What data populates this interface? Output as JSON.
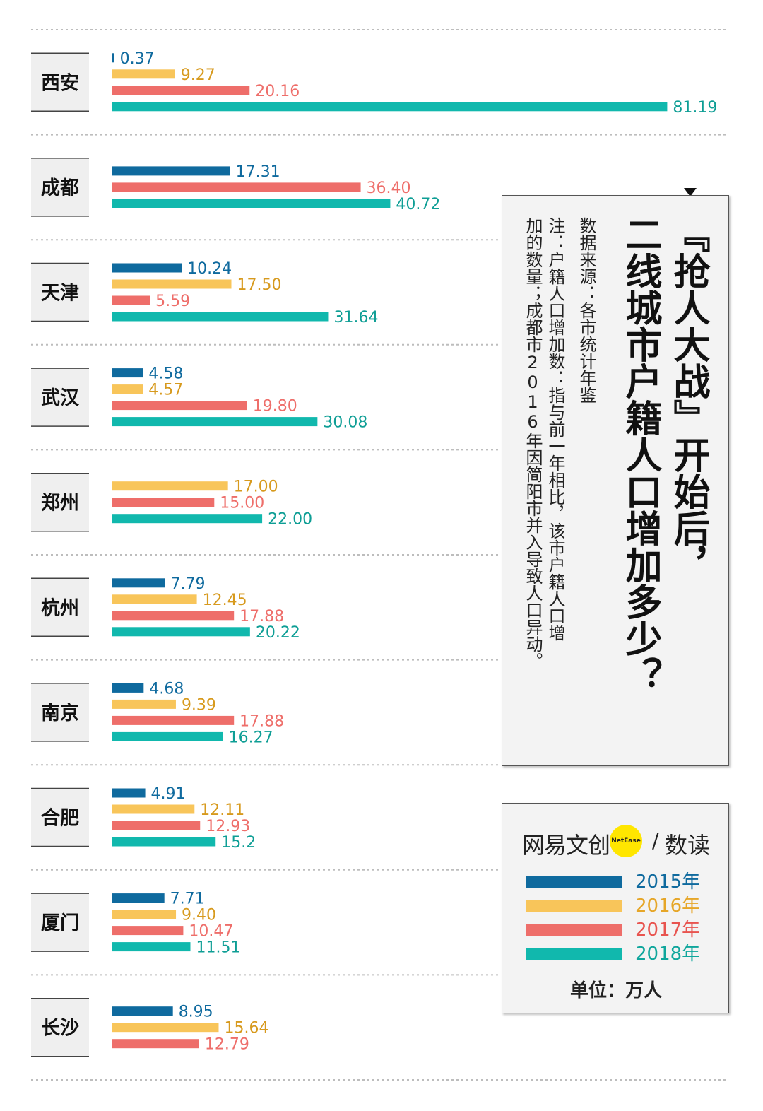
{
  "chart_data": {
    "type": "bar",
    "orientation": "horizontal",
    "categories": [
      "西安",
      "成都",
      "天津",
      "武汉",
      "郑州",
      "杭州",
      "南京",
      "合肥",
      "厦门",
      "长沙"
    ],
    "series": [
      {
        "name": "2015年",
        "color": "#0f6a9e",
        "values": [
          0.37,
          17.31,
          10.24,
          4.58,
          null,
          7.79,
          4.68,
          4.91,
          7.71,
          8.95
        ],
        "labels": [
          "0.37",
          "17.31",
          "10.24",
          "4.58",
          null,
          "7.79",
          "4.68",
          "4.91",
          "7.71",
          "8.95"
        ]
      },
      {
        "name": "2016年",
        "color": "#f8c55a",
        "label_color": "#d79a1e",
        "values": [
          9.27,
          null,
          17.5,
          4.57,
          17.0,
          12.45,
          9.39,
          12.11,
          9.4,
          15.64
        ],
        "labels": [
          "9.27",
          null,
          "17.50",
          "4.57",
          "17.00",
          "12.45",
          "9.39",
          "12.11",
          "9.40",
          "15.64"
        ]
      },
      {
        "name": "2017年",
        "color": "#ee6e6a",
        "values": [
          20.16,
          36.4,
          5.59,
          19.8,
          15.0,
          17.88,
          17.88,
          12.93,
          10.47,
          12.79
        ],
        "labels": [
          "20.16",
          "36.40",
          "5.59",
          "19.80",
          "15.00",
          "17.88",
          "17.88",
          "12.93",
          "10.47",
          "12.79"
        ]
      },
      {
        "name": "2018年",
        "color": "#11b8ad",
        "label_color": "#0e9e95",
        "values": [
          81.19,
          40.72,
          31.64,
          30.08,
          22.0,
          20.22,
          16.27,
          15.2,
          11.51,
          null
        ],
        "labels": [
          "81.19",
          "40.72",
          "31.64",
          "30.08",
          "22.00",
          "20.22",
          "16.27",
          "15.2",
          "11.51",
          null
        ]
      }
    ],
    "title": "『抢人大战』开始后，二线城市户籍人口增加多少？",
    "unit": "单位：万人",
    "xlim": [
      0,
      81.19
    ]
  },
  "title_box": {
    "title_line1": "『抢人大战』开始后，",
    "title_line2": "二线城市户籍人口增加多少？",
    "source": "数据来源：各市统计年鉴",
    "note_line1": "注：户籍人口增加数：指与前一年相比，该市户籍人口增",
    "note_line2": "加的数量；成都市2016年因简阳市并入导致人口异动。"
  },
  "legend": {
    "brand_left": "网易文创",
    "brand_netease": "NetEase",
    "brand_slash": "/",
    "brand_right": "数读",
    "items": [
      {
        "label": "2015年",
        "color": "#0f6a9e",
        "text_color": "#0f6a9e"
      },
      {
        "label": "2016年",
        "color": "#f8c55a",
        "text_color": "#e6a628"
      },
      {
        "label": "2017年",
        "color": "#ee6e6a",
        "text_color": "#e8544f"
      },
      {
        "label": "2018年",
        "color": "#11b8ad",
        "text_color": "#0fa69c"
      }
    ],
    "unit": "单位：万人"
  }
}
